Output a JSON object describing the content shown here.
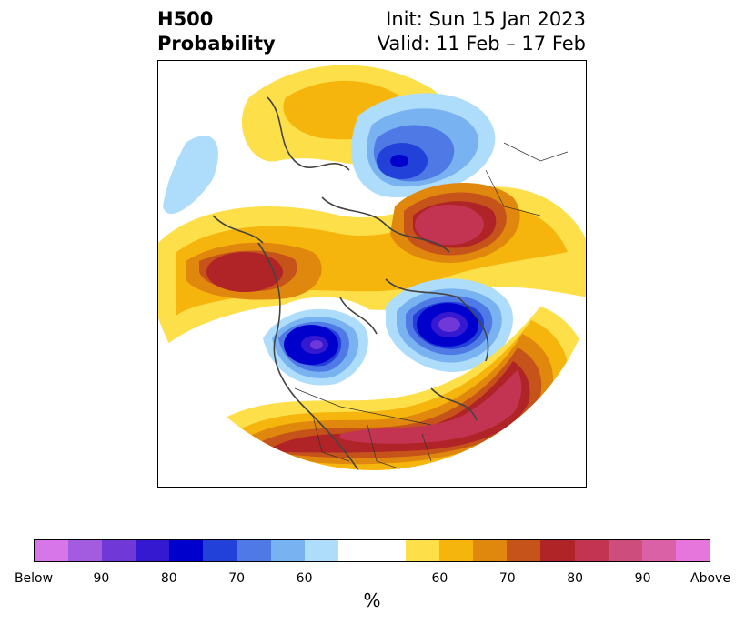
{
  "title": {
    "left_line1": "H500",
    "left_line2": "Probability",
    "right_line1": "Init: Sun 15 Jan 2023",
    "right_line2": "Valid: 11 Feb – 17 Feb"
  },
  "colorbar": {
    "unit": "%",
    "colors": [
      "#d676e8",
      "#a35be0",
      "#7038d6",
      "#3519d0",
      "#0000cd",
      "#2141d8",
      "#4f7ae6",
      "#78b2f0",
      "#aedcfb",
      "#ffffff",
      "#ffffff",
      "#fddf4a",
      "#f5b50c",
      "#e0870e",
      "#c6531a",
      "#b02327",
      "#c23451",
      "#cd4e7a",
      "#db61a6",
      "#e675dc"
    ],
    "tick_labels": [
      "Below",
      "90",
      "80",
      "70",
      "60",
      "60",
      "70",
      "80",
      "90",
      "Above"
    ]
  },
  "map": {
    "description_icon": "polar-stereographic-map",
    "below_color": "#0000cd",
    "above_color": "#b02327"
  }
}
